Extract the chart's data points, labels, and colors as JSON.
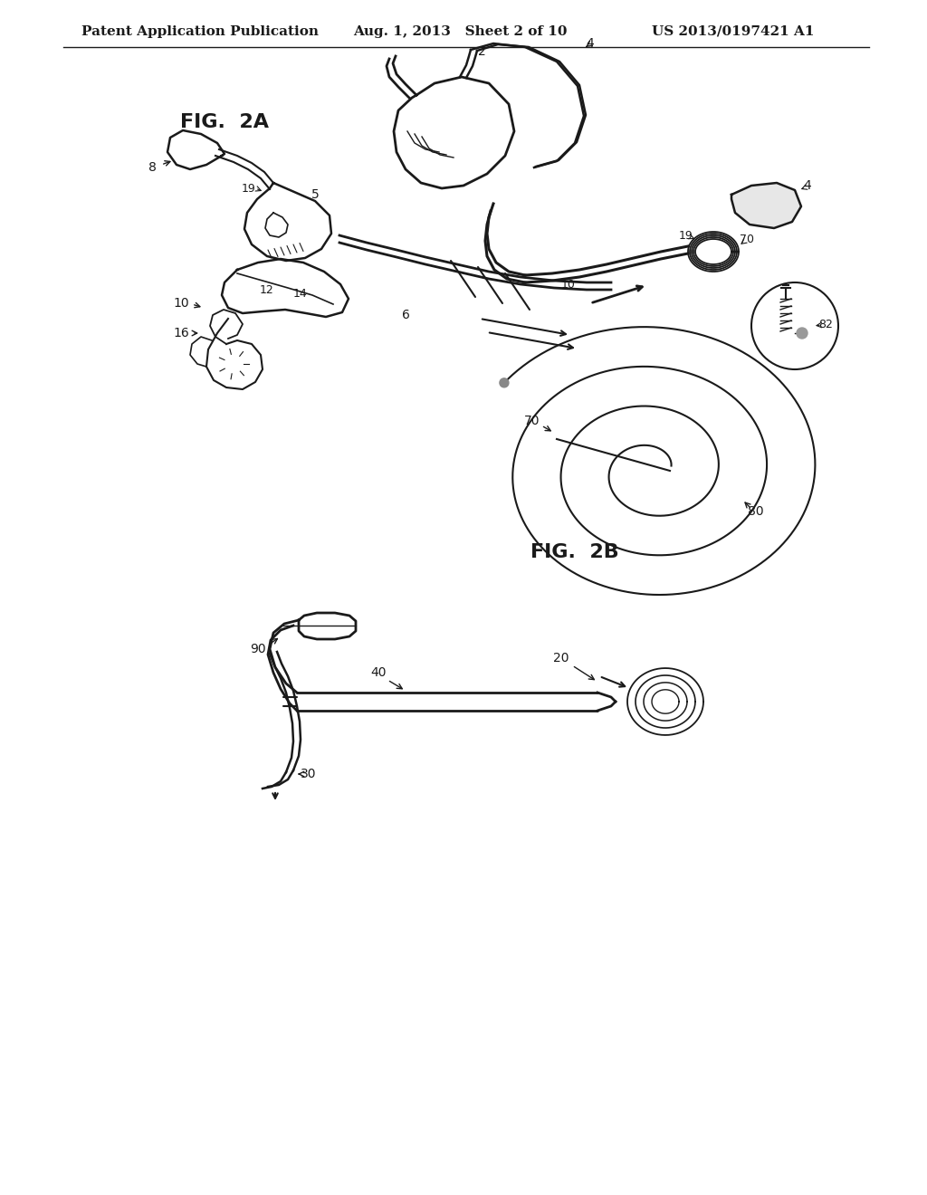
{
  "background_color": "#ffffff",
  "header_left": "Patent Application Publication",
  "header_center": "Aug. 1, 2013   Sheet 2 of 10",
  "header_right": "US 2013/0197421 A1",
  "fig2a_label": "FIG.  2A",
  "fig2b_label": "FIG.  2B",
  "text_color": "#1a1a1a",
  "line_color": "#1a1a1a",
  "header_fontsize": 11,
  "fig_label_fontsize": 16
}
